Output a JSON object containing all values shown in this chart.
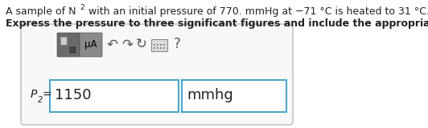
{
  "line1_part1": "A sample of N",
  "line1_sub": "2",
  "line1_part2": " with an initial pressure of 770. mmHg at −71 °C is heated to 31 °C.",
  "line2": "Express the pressure to three significant figures and include the appropriate units.",
  "p2_value": "1150",
  "p2_units": "mmhg",
  "toolbar_label": "μA",
  "question_mark": "?",
  "undo_arrow": "↶",
  "redo_arrow": "↷",
  "refresh": "↻",
  "bg_color": "#ffffff",
  "text_color": "#222222",
  "box_border_color": "#bbbbbb",
  "input_border_color": "#4da6c8",
  "outer_box_bg": "#f8f8f8",
  "toolbar_btn1_bg": "#6a6a6a",
  "toolbar_btn2_bg": "#8a8a8a",
  "font_size_body": 9.0,
  "font_size_bold": 9.0,
  "font_size_answer": 13.0,
  "font_size_toolbar": 8.5
}
